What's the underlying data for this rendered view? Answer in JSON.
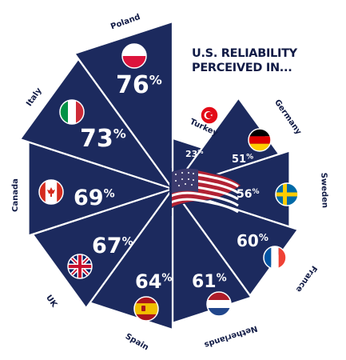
{
  "title_line1": "U.S. RELIABILITY",
  "title_line2": "PERCEIVED IN...",
  "colors": {
    "slice": "#1c2a5e",
    "stroke": "#ffffff",
    "text": "#ffffff",
    "label": "#101a45"
  },
  "chart_data": {
    "type": "radial-bar",
    "title": "U.S. RELIABILITY PERCEIVED IN...",
    "unit": "%",
    "categories": [
      "Turkey",
      "Germany",
      "Sweden",
      "France",
      "Netherlands",
      "Spain",
      "UK",
      "Canada",
      "Italy",
      "Poland"
    ],
    "values": [
      23,
      51,
      56,
      60,
      61,
      64,
      67,
      69,
      73,
      76
    ],
    "percent_signs": [
      "%",
      "%",
      "%",
      "%",
      "%",
      "%",
      "%",
      "%",
      "%",
      "%"
    ],
    "flags": [
      "turkey-flag-icon",
      "germany-flag-icon",
      "sweden-flag-icon",
      "france-flag-icon",
      "netherlands-flag-icon",
      "spain-flag-icon",
      "uk-flag-icon",
      "canada-flag-icon",
      "italy-flag-icon",
      "poland-flag-icon"
    ],
    "center_icon": "usa-flag-icon"
  }
}
